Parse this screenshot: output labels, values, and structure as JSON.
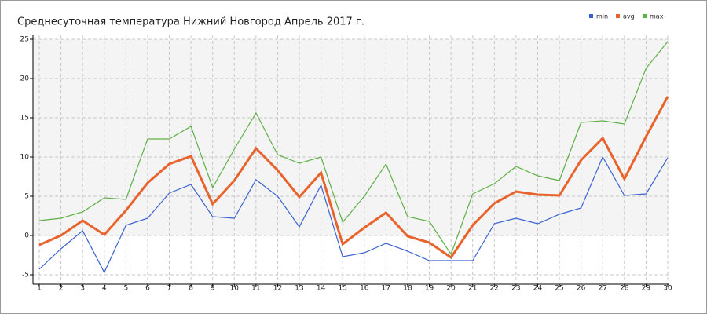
{
  "chart_data": {
    "type": "line",
    "title": "Среднесуточная температура Нижний Новгород  Апрель 2017 г.",
    "x": [
      1,
      2,
      3,
      4,
      5,
      6,
      7,
      8,
      9,
      10,
      11,
      12,
      13,
      14,
      15,
      16,
      17,
      18,
      19,
      20,
      21,
      22,
      23,
      24,
      25,
      26,
      27,
      28,
      29,
      30
    ],
    "series": [
      {
        "name": "min",
        "color": "#3a62d0",
        "values": [
          -4.3,
          -1.7,
          0.6,
          -4.7,
          1.3,
          2.2,
          5.4,
          6.5,
          2.4,
          2.2,
          7.1,
          5.0,
          1.1,
          6.4,
          -2.7,
          -2.2,
          -1.0,
          -2.0,
          -3.2,
          -3.2,
          -3.2,
          1.5,
          2.2,
          1.5,
          2.7,
          3.5,
          10.0,
          5.1,
          5.3,
          9.9
        ]
      },
      {
        "name": "avg",
        "color": "#e8642c",
        "values": [
          -1.2,
          0.0,
          1.9,
          0.1,
          3.2,
          6.7,
          9.1,
          10.1,
          4.0,
          7.0,
          11.1,
          8.3,
          4.9,
          8.0,
          -1.1,
          1.0,
          2.9,
          -0.1,
          -0.9,
          -2.8,
          1.3,
          4.1,
          5.6,
          5.2,
          5.1,
          9.6,
          12.4,
          7.2,
          12.6,
          17.7
        ]
      },
      {
        "name": "max",
        "color": "#5eb045",
        "values": [
          1.9,
          2.2,
          3.0,
          4.8,
          4.6,
          12.3,
          12.3,
          13.9,
          6.1,
          11.0,
          15.6,
          10.3,
          9.2,
          10.0,
          1.7,
          5.0,
          9.1,
          2.4,
          1.8,
          -2.4,
          5.3,
          6.6,
          8.8,
          7.6,
          7.0,
          14.4,
          14.6,
          14.2,
          21.3,
          24.7
        ]
      }
    ],
    "xlim": [
      1,
      30
    ],
    "xticks": [
      1,
      2,
      3,
      4,
      5,
      6,
      7,
      8,
      9,
      10,
      11,
      12,
      13,
      14,
      15,
      16,
      17,
      18,
      19,
      20,
      21,
      22,
      23,
      24,
      25,
      26,
      27,
      28,
      29,
      30
    ],
    "ylim": [
      -6.2,
      25.5
    ],
    "yticks": [
      -5,
      0,
      5,
      10,
      15,
      20,
      25
    ],
    "grid": true,
    "legend": "top-right"
  }
}
